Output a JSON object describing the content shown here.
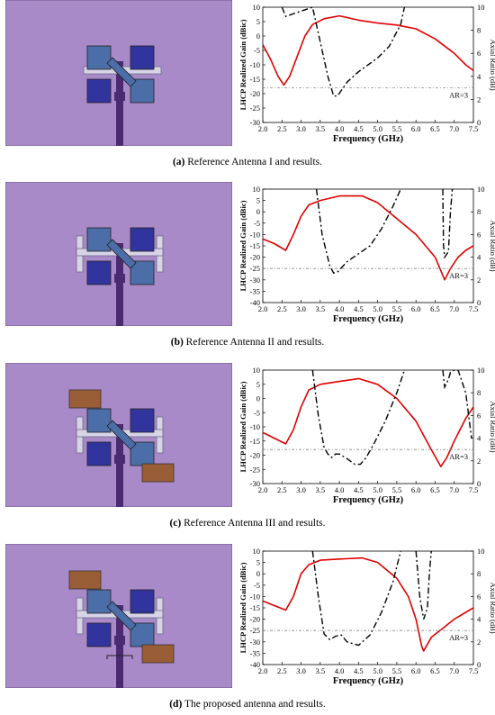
{
  "colors": {
    "substrate": "#A98AC8",
    "patch_light": "#4C6EA8",
    "patch_dark": "#32349E",
    "feed": "#4B2A72",
    "ring": "#D8D4E8",
    "parasitic": "#9A5E36",
    "gain": "#E10000",
    "ar": "#000000",
    "ref": "#888888"
  },
  "panels": [
    {
      "label": "(a)",
      "caption": "Reference Antenna I and results.",
      "antenna": "ref1",
      "ylim": [
        -30,
        10
      ],
      "yticks": [
        "10",
        "5",
        "0",
        "-5",
        "-10",
        "-15",
        "-20",
        "-25",
        "-30"
      ],
      "ar_label": "AR=3",
      "chart_data": {
        "type": "line",
        "xlabel": "Frequency (GHz)",
        "ylabel_left": "LHCP Realized Gain (dBic)",
        "ylabel_right": "Axial Ratio (dB)",
        "xlim": [
          2.0,
          7.5
        ],
        "ylim_right": [
          0,
          10
        ],
        "series": [
          {
            "axis": "left",
            "style": "solid",
            "x": [
              2.0,
              2.2,
              2.4,
              2.55,
              2.7,
              2.9,
              3.1,
              3.3,
              3.6,
              4.0,
              4.5,
              5.0,
              5.5,
              6.0,
              6.5,
              7.0,
              7.3,
              7.5
            ],
            "y": [
              -3,
              -8,
              -14,
              -17,
              -14,
              -7,
              0,
              4,
              6,
              7,
              5.5,
              4.5,
              3.8,
              2.5,
              -1,
              -6,
              -10,
              -12
            ]
          },
          {
            "axis": "right",
            "style": "dashdot",
            "x": [
              2.5,
              2.6,
              3.3,
              3.5,
              3.7,
              3.85,
              3.95,
              4.2,
              4.5,
              5.0,
              5.3,
              5.6,
              5.7
            ],
            "y": [
              10,
              9.2,
              10,
              7,
              4,
              2.3,
              2.3,
              3.5,
              4.4,
              5.6,
              6.6,
              8.5,
              10
            ]
          },
          {
            "axis": "right",
            "style": "reference",
            "x": [
              2.0,
              7.5
            ],
            "y": [
              3,
              3
            ]
          }
        ]
      }
    },
    {
      "label": "(b)",
      "caption": "Reference Antenna II and results.",
      "antenna": "ref2",
      "ylim": [
        -40,
        10
      ],
      "yticks": [
        "10",
        "5",
        "0",
        "-5",
        "-10",
        "-15",
        "-20",
        "-25",
        "-30",
        "-35",
        "-40"
      ],
      "ar_label": "AR=3",
      "chart_data": {
        "type": "line",
        "xlabel": "Frequency (GHz)",
        "ylabel_left": "LHCP Realized Gain (dBic)",
        "ylabel_right": "Axial Ratio (dB)",
        "xlim": [
          2.0,
          7.5
        ],
        "ylim_right": [
          0,
          10
        ],
        "series": [
          {
            "axis": "left",
            "style": "solid",
            "x": [
              2.0,
              2.3,
              2.6,
              2.8,
              3.0,
              3.2,
              3.5,
              4.0,
              4.6,
              5.0,
              5.5,
              6.0,
              6.5,
              6.75,
              6.9,
              7.1,
              7.3,
              7.5
            ],
            "y": [
              -12,
              -14,
              -17,
              -10,
              -2,
              3,
              5,
              7,
              7,
              4,
              -3,
              -10,
              -20,
              -30,
              -25,
              -20,
              -17,
              -15
            ]
          },
          {
            "axis": "right",
            "style": "dashdot",
            "x": [
              3.4,
              3.55,
              3.75,
              3.85,
              3.95,
              4.2,
              4.5,
              4.8,
              5.1,
              5.4,
              5.6
            ],
            "y": [
              10,
              6,
              3.2,
              2.6,
              2.7,
              3.6,
              4.3,
              5.0,
              6.5,
              8.5,
              10
            ]
          },
          {
            "axis": "right",
            "style": "dashdot",
            "x": [
              6.7,
              6.72,
              6.75,
              6.85,
              6.9,
              6.95
            ],
            "y": [
              10,
              5,
              4,
              4.5,
              8,
              10
            ]
          },
          {
            "axis": "right",
            "style": "reference",
            "x": [
              2.0,
              7.5
            ],
            "y": [
              3,
              3
            ]
          }
        ]
      }
    },
    {
      "label": "(c)",
      "caption": "Reference Antenna III and results.",
      "antenna": "ref3",
      "ylim": [
        -30,
        10
      ],
      "yticks": [
        "10",
        "5",
        "0",
        "-5",
        "-10",
        "-15",
        "-20",
        "-25",
        "-30"
      ],
      "ar_label": "AR=3",
      "chart_data": {
        "type": "line",
        "xlabel": "Frequency (GHz)",
        "ylabel_left": "LHCP Realized Gain (dBic)",
        "ylabel_right": "Axial Ratio (dB)",
        "xlim": [
          2.0,
          7.5
        ],
        "ylim_right": [
          0,
          10
        ],
        "series": [
          {
            "axis": "left",
            "style": "solid",
            "x": [
              2.0,
              2.3,
              2.6,
              2.8,
              3.0,
              3.2,
              3.5,
              4.0,
              4.5,
              5.0,
              5.5,
              6.0,
              6.4,
              6.65,
              6.8,
              7.0,
              7.3,
              7.5
            ],
            "y": [
              -12,
              -14,
              -16,
              -11,
              -3,
              3,
              5,
              6,
              7,
              5,
              0,
              -8,
              -18,
              -24,
              -21,
              -15,
              -7,
              -3
            ]
          },
          {
            "axis": "right",
            "style": "dashdot",
            "x": [
              3.3,
              3.45,
              3.6,
              3.7,
              3.8,
              3.9,
              4.0,
              4.2,
              4.4,
              4.55,
              4.7,
              4.9,
              5.2,
              5.5,
              5.7
            ],
            "y": [
              10,
              6,
              3.2,
              2.6,
              2.3,
              2.6,
              2.6,
              2.2,
              1.7,
              1.7,
              2.3,
              3.5,
              5.5,
              8.0,
              10
            ]
          },
          {
            "axis": "right",
            "style": "dashdot",
            "x": [
              6.7,
              6.75,
              6.85,
              6.9,
              7.0,
              7.1,
              7.3,
              7.45
            ],
            "y": [
              10,
              8.5,
              9.2,
              9.8,
              10,
              10,
              8,
              4
            ]
          },
          {
            "axis": "right",
            "style": "reference",
            "x": [
              2.0,
              7.5
            ],
            "y": [
              3,
              3
            ]
          }
        ]
      }
    },
    {
      "label": "(d)",
      "caption": "The proposed antenna and results.",
      "antenna": "proposed",
      "ylim": [
        -40,
        10
      ],
      "yticks": [
        "10",
        "5",
        "0",
        "-5",
        "-10",
        "-15",
        "-20",
        "-25",
        "-30",
        "-35",
        "-40"
      ],
      "ar_label": "AR=3",
      "chart_data": {
        "type": "line",
        "xlabel": "Frequency (GHz)",
        "ylabel_left": "LHCP Realized Gain (dBic)",
        "ylabel_right": "Axial Ratio (dB)",
        "xlim": [
          2.0,
          7.5
        ],
        "ylim_right": [
          0,
          10
        ],
        "series": [
          {
            "axis": "left",
            "style": "solid",
            "x": [
              2.0,
              2.3,
              2.6,
              2.8,
              3.0,
              3.2,
              3.5,
              4.0,
              4.6,
              5.0,
              5.5,
              5.8,
              6.0,
              6.15,
              6.2,
              6.4,
              6.7,
              7.0,
              7.3,
              7.5
            ],
            "y": [
              -12,
              -14,
              -16,
              -10,
              0,
              4,
              6,
              6.5,
              7,
              5,
              -2,
              -10,
              -20,
              -32,
              -34,
              -28,
              -24,
              -20,
              -17,
              -15
            ]
          },
          {
            "axis": "right",
            "style": "dashdot",
            "x": [
              3.3,
              3.45,
              3.6,
              3.75,
              3.9,
              4.05,
              4.2,
              4.5,
              4.8,
              5.1,
              5.4,
              5.6
            ],
            "y": [
              10,
              6,
              2.7,
              2.2,
              2.5,
              2.6,
              2.0,
              1.7,
              2.6,
              4.6,
              7.3,
              10
            ]
          },
          {
            "axis": "right",
            "style": "dashdot",
            "x": [
              6.0,
              6.1,
              6.2,
              6.3,
              6.35,
              6.4
            ],
            "y": [
              10,
              6,
              4,
              5,
              8,
              10
            ]
          },
          {
            "axis": "right",
            "style": "reference",
            "x": [
              2.0,
              7.5
            ],
            "y": [
              3,
              3
            ]
          }
        ]
      }
    }
  ]
}
